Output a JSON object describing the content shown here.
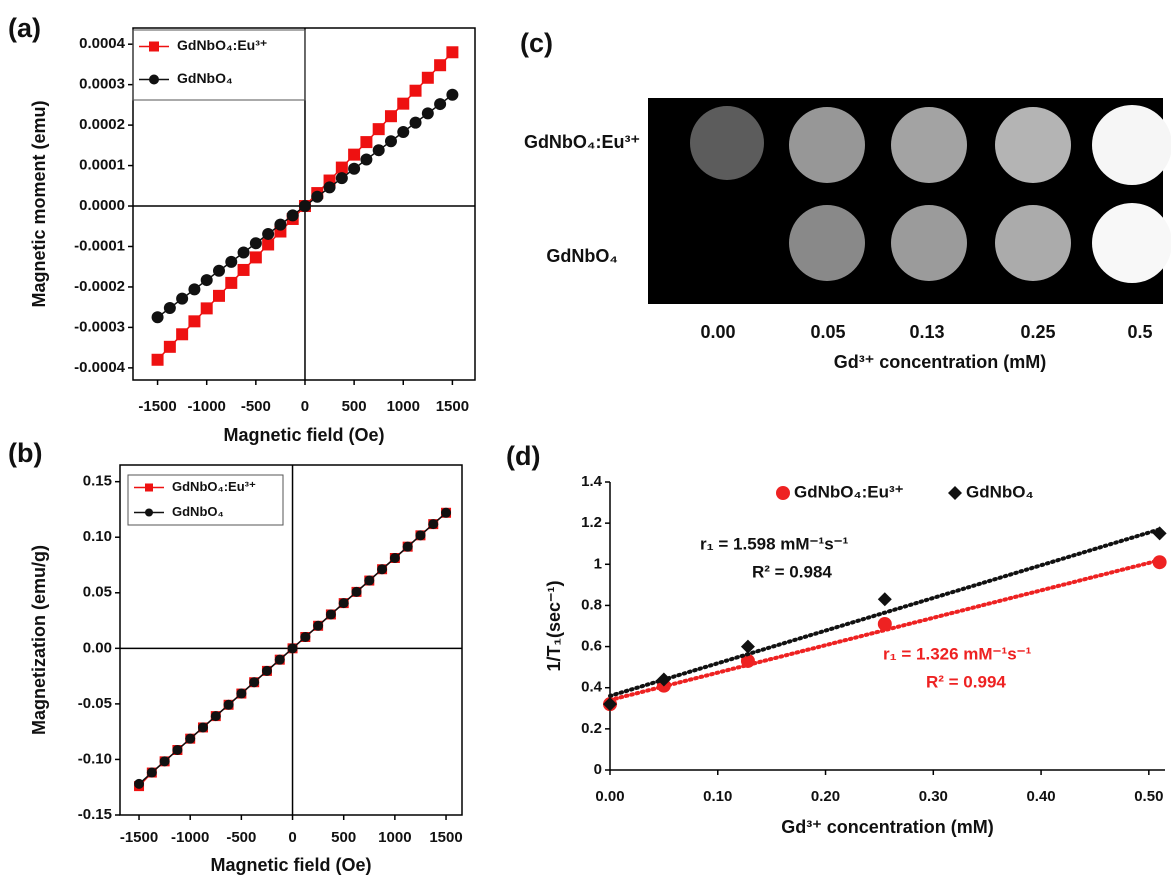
{
  "chart_data": [
    {
      "type": "line",
      "panel_label": "(a)",
      "x_label": "Magnetic field (Oe)",
      "y_label": "Magnetic moment (emu)",
      "x": [
        -1500,
        -1375,
        -1250,
        -1125,
        -1000,
        -875,
        -750,
        -625,
        -500,
        -375,
        -250,
        -125,
        0,
        125,
        250,
        375,
        500,
        625,
        750,
        875,
        1000,
        1125,
        1250,
        1375,
        1500
      ],
      "series": [
        {
          "name": "GdNbO₄:Eu³⁺",
          "color": "#ee1111",
          "marker": "square",
          "values": [
            -0.00038,
            -0.000348,
            -0.000317,
            -0.000285,
            -0.000253,
            -0.000222,
            -0.00019,
            -0.000158,
            -0.000127,
            -9.5e-05,
            -6.3e-05,
            -3.2e-05,
            0,
            3.2e-05,
            6.3e-05,
            9.5e-05,
            0.000127,
            0.000158,
            0.00019,
            0.000222,
            0.000253,
            0.000285,
            0.000317,
            0.000348,
            0.00038
          ]
        },
        {
          "name": "GdNbO₄",
          "color": "#111111",
          "marker": "circle",
          "values": [
            -0.000275,
            -0.000252,
            -0.000229,
            -0.000206,
            -0.000183,
            -0.00016,
            -0.000138,
            -0.000115,
            -9.2e-05,
            -6.9e-05,
            -4.6e-05,
            -2.3e-05,
            0,
            2.3e-05,
            4.6e-05,
            6.9e-05,
            9.2e-05,
            0.000115,
            0.000138,
            0.00016,
            0.000183,
            0.000206,
            0.000229,
            0.000252,
            0.000275
          ]
        }
      ],
      "xlim": [
        -1750,
        1730
      ],
      "ylim": [
        -0.00043,
        0.00044
      ],
      "xticks": [
        -1500,
        -1000,
        -500,
        0,
        500,
        1000,
        1500
      ],
      "yticks": [
        0.0004,
        0.0003,
        0.0002,
        0.0001,
        {
          "value": 0,
          "label": "0.0000"
        },
        -0.0001,
        -0.0002,
        -0.0003,
        -0.0004
      ],
      "frame": true,
      "zero_lines": true,
      "legend": "top-left"
    },
    {
      "type": "line",
      "panel_label": "(b)",
      "x_label": "Magnetic field (Oe)",
      "y_label": "Magnetization (emu/g)",
      "x": [
        -1500,
        -1375,
        -1250,
        -1125,
        -1000,
        -875,
        -750,
        -625,
        -500,
        -375,
        -250,
        -125,
        0,
        125,
        250,
        375,
        500,
        625,
        750,
        875,
        1000,
        1125,
        1250,
        1375,
        1500
      ],
      "series": [
        {
          "name": "GdNbO₄:Eu³⁺",
          "color": "#ee1111",
          "marker": "square",
          "values": [
            -0.124,
            -0.1118,
            -0.1017,
            -0.0915,
            -0.0813,
            -0.0712,
            -0.061,
            -0.0508,
            -0.0407,
            -0.0305,
            -0.0203,
            -0.0102,
            0,
            0.0102,
            0.0203,
            0.0305,
            0.0407,
            0.0508,
            0.061,
            0.0712,
            0.0813,
            0.0915,
            0.1017,
            0.1118,
            0.122
          ]
        },
        {
          "name": "GdNbO₄",
          "color": "#111111",
          "marker": "circle",
          "values": [
            -0.122,
            -0.1118,
            -0.1017,
            -0.0915,
            -0.0813,
            -0.0712,
            -0.061,
            -0.0508,
            -0.0407,
            -0.0305,
            -0.0203,
            -0.0102,
            0,
            0.0102,
            0.0203,
            0.0305,
            0.0407,
            0.0508,
            0.061,
            0.0712,
            0.0813,
            0.0915,
            0.1017,
            0.1118,
            0.122
          ]
        }
      ],
      "xlim": [
        -1686,
        1656
      ],
      "ylim": [
        -0.15,
        0.165
      ],
      "xticks": [
        -1500,
        -1000,
        -500,
        0,
        500,
        1000,
        1500
      ],
      "yticks": [
        0.15,
        {
          "value": 0.1,
          "label": "0.10"
        },
        0.05,
        {
          "value": 0,
          "label": "0.00"
        },
        -0.05,
        {
          "value": -0.1,
          "label": "-0.10"
        },
        -0.15
      ],
      "frame": true,
      "zero_lines": true,
      "legend": "top-left"
    },
    {
      "type": "scatter",
      "panel_label": "(d)",
      "x_label": "Gd³⁺ concentration (mM)",
      "y_label": "1/T₁(sec⁻¹)",
      "x": [
        0,
        0.05,
        0.128,
        0.255,
        0.51
      ],
      "series": [
        {
          "name": "GdNbO₄:Eu³⁺",
          "color": "#ee2222",
          "marker": "circle",
          "values": [
            0.32,
            0.41,
            0.53,
            0.71,
            1.01
          ],
          "trendline": {
            "x": [
              0,
              0.51
            ],
            "values": [
              0.34,
              1.02
            ]
          }
        },
        {
          "name": "GdNbO₄",
          "color": "#111111",
          "marker": "diamond",
          "values": [
            0.32,
            0.44,
            0.6,
            0.83,
            1.15
          ],
          "trendline": {
            "x": [
              0,
              0.51
            ],
            "values": [
              0.36,
              1.17
            ]
          }
        }
      ],
      "annotations": [
        {
          "text": "r₁ = 1.598 mM⁻¹s⁻¹",
          "color": "#111111"
        },
        {
          "text": "R² = 0.984",
          "color": "#111111"
        },
        {
          "text": "r₁ = 1.326 mM⁻¹s⁻¹",
          "color": "#ee2222"
        },
        {
          "text": "R² = 0.994",
          "color": "#ee2222"
        }
      ],
      "xlim": [
        0,
        0.515
      ],
      "ylim": [
        0,
        1.4
      ],
      "xticks": [
        {
          "value": 0,
          "label": "0.00"
        },
        {
          "value": 0.1,
          "label": "0.10"
        },
        {
          "value": 0.2,
          "label": "0.20"
        },
        {
          "value": 0.3,
          "label": "0.30"
        },
        {
          "value": 0.4,
          "label": "0.40"
        },
        {
          "value": 0.5,
          "label": "0.50"
        }
      ],
      "yticks": [
        0,
        0.2,
        0.4,
        0.6,
        0.8,
        1,
        1.2,
        1.4
      ],
      "frame": false,
      "zero_lines": false,
      "legend": "top"
    }
  ],
  "mri_panel": {
    "panel_label": "(c)",
    "row_labels": [
      "GdNbO₄:Eu³⁺",
      "GdNbO₄"
    ],
    "column_labels": [
      "0.00",
      "0.05",
      "0.13",
      "0.25",
      "0.5"
    ],
    "x_label": "Gd³⁺ concentration (mM)"
  }
}
